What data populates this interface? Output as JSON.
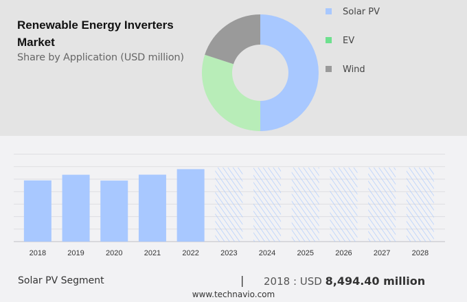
{
  "header": {
    "title": "Renewable Energy Inverters Market",
    "subtitle": "Share by Application (USD million)"
  },
  "chart_data": [
    {
      "type": "pie",
      "style": "donut",
      "categories": [
        "Solar PV",
        "EV",
        "Wind"
      ],
      "values": [
        50,
        30,
        20
      ],
      "colors": [
        "#a8c8ff",
        "#b8edb8",
        "#9a9a9a"
      ],
      "legend_colors": [
        "#a8c8ff",
        "#6ee08e",
        "#9a9a9a"
      ],
      "legend_position": "right"
    },
    {
      "type": "bar",
      "categories": [
        "2018",
        "2019",
        "2020",
        "2021",
        "2022",
        "2023",
        "2024",
        "2025",
        "2026",
        "2027",
        "2028"
      ],
      "values": [
        8494.4,
        9280,
        8470,
        9290,
        10060,
        null,
        null,
        null,
        null,
        null,
        null
      ],
      "forecast_from": "2023",
      "bar_color": "#a8c8ff",
      "forecast_style": "hatched",
      "grid": true,
      "ylim": [
        0,
        12100
      ]
    }
  ],
  "footer": {
    "segment": "Solar PV Segment",
    "separator": "|",
    "year_prefix": "2018 : USD",
    "value": "8,494.40 million",
    "website": "www.technavio.com"
  }
}
